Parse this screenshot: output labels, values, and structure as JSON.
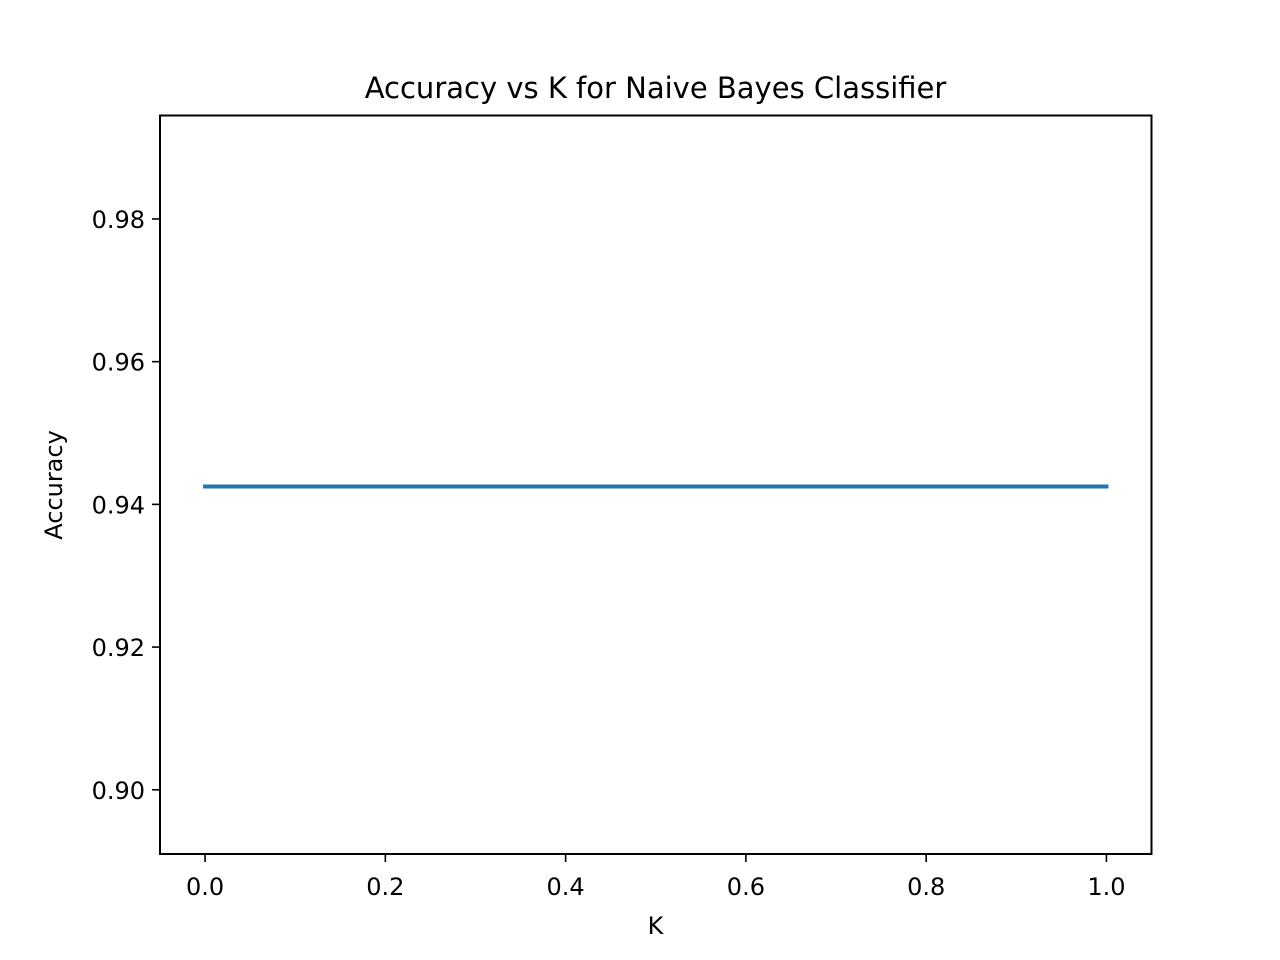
{
  "chart_data": {
    "type": "line",
    "title": "Accuracy vs K for Naive Bayes Classifier",
    "xlabel": "K",
    "ylabel": "Accuracy",
    "xlim": [
      -0.05,
      1.05
    ],
    "ylim": [
      0.891,
      0.9945
    ],
    "xticks": [
      0.0,
      0.2,
      0.4,
      0.6,
      0.8,
      1.0
    ],
    "xtick_labels": [
      "0.0",
      "0.2",
      "0.4",
      "0.6",
      "0.8",
      "1.0"
    ],
    "yticks": [
      0.9,
      0.92,
      0.94,
      0.96,
      0.98
    ],
    "ytick_labels": [
      "0.90",
      "0.92",
      "0.94",
      "0.96",
      "0.98"
    ],
    "grid": false,
    "series": [
      {
        "color": "#1f77b4",
        "x": [
          0.0,
          1.0
        ],
        "y": [
          0.9425,
          0.9425
        ]
      }
    ]
  }
}
